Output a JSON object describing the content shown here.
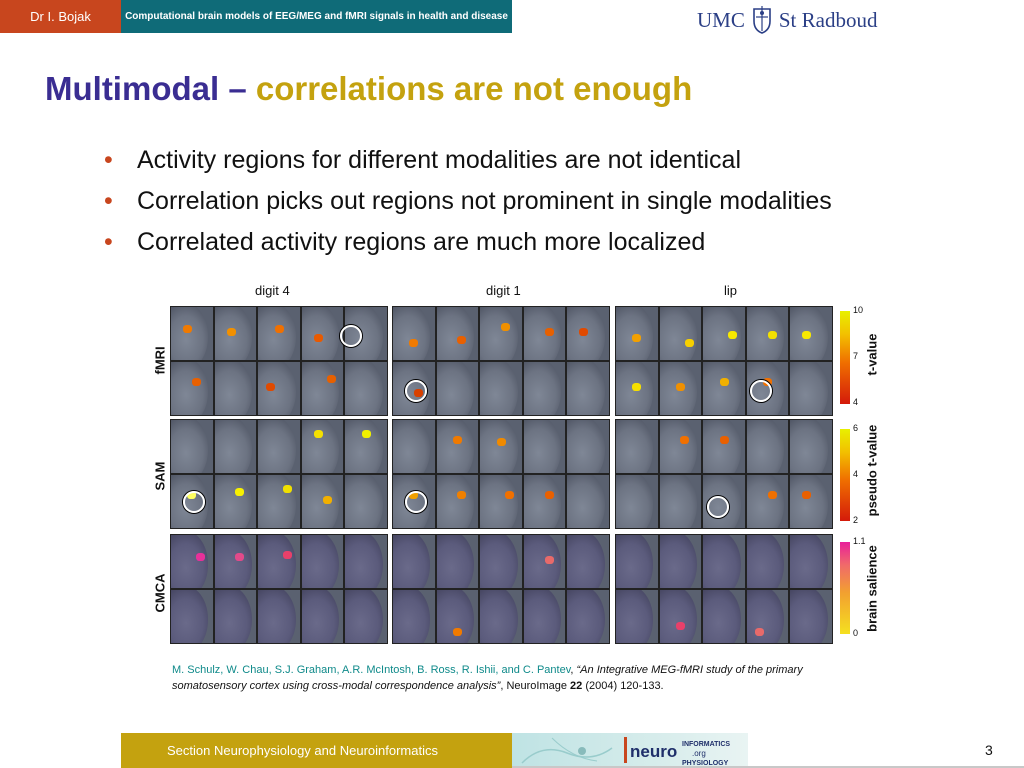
{
  "header": {
    "author": "Dr I. Bojak",
    "course": "Computational brain models of EEG/MEG and fMRI signals in health and disease",
    "logo_left": "UMC",
    "logo_right": "St Radboud"
  },
  "slide": {
    "title_main": "Multimodal – ",
    "title_highlight": "correlations are not enough",
    "bullets": [
      "Activity regions for different modalities are not identical",
      "Correlation picks out regions not prominent in single modalities",
      "Correlated activity regions are much more localized"
    ]
  },
  "figure": {
    "columns": [
      "digit 4",
      "digit 1",
      "lip"
    ],
    "rows": [
      "fMRI",
      "SAM",
      "CMCA"
    ],
    "scales": [
      {
        "label": "t-value",
        "ticks": [
          "10",
          "7",
          "4"
        ]
      },
      {
        "label": "pseudo t-value",
        "ticks": [
          "6",
          "4",
          "2"
        ]
      },
      {
        "label": "brain salience",
        "ticks": [
          "1.1",
          "0"
        ]
      }
    ]
  },
  "citation": {
    "authors": "M. Schulz, W. Chau, S.J. Graham, A.R. McIntosh, B. Ross, R. Ishii, and C. Pantev",
    "sep": ", ",
    "title": "“An Integrative MEG-fMRI study of the primary somatosensory cortex using cross-modal correspondence analysis”",
    "journal": ", NeuroImage ",
    "volume": "22",
    "rest": " (2004) 120-133."
  },
  "footer": {
    "section": "Section Neurophysiology and Neuroinformatics",
    "logo_text": "neuroinformatics.org",
    "page": "3"
  },
  "colors": {
    "orange": "#c8461e",
    "teal": "#0f6b78",
    "purple": "#3a2d92",
    "gold": "#c4a20f"
  }
}
